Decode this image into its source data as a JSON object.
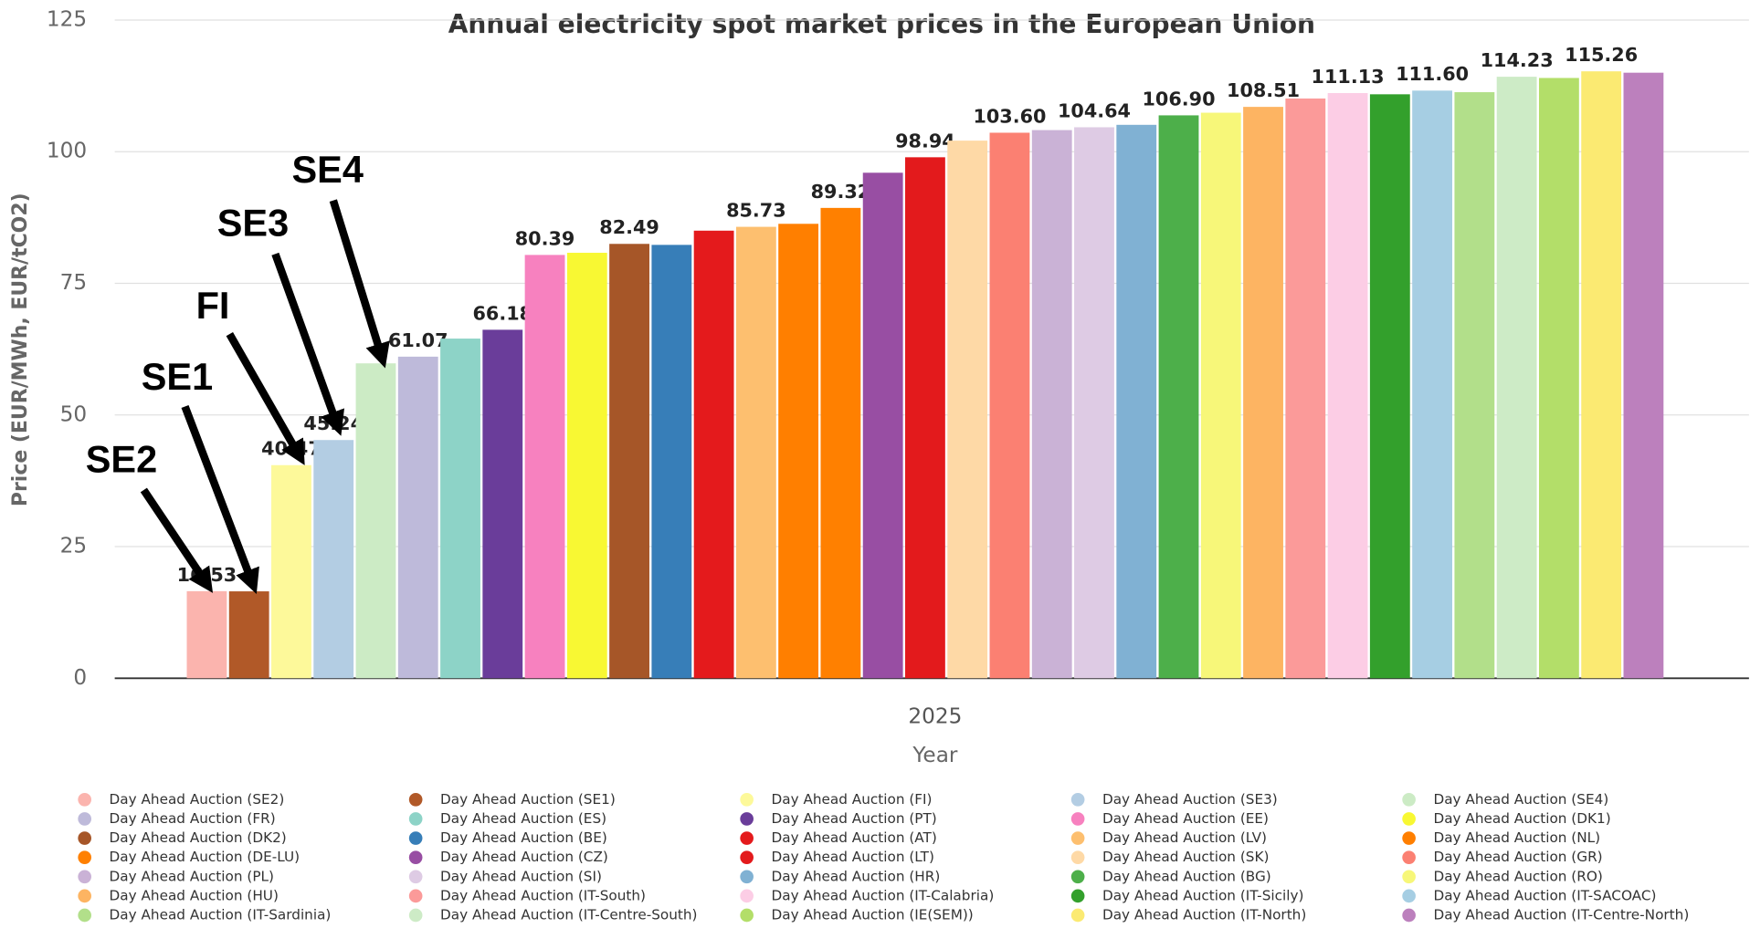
{
  "chart_data": {
    "type": "bar",
    "title": "Annual electricity spot market prices in the European Union",
    "x_label": "Year",
    "y_label": "Price (EUR/MWh, EUR/tCO2)",
    "categories": [
      "2025"
    ],
    "ylim": [
      0,
      125
    ],
    "yticks": [
      0,
      25,
      50,
      75,
      100,
      125
    ],
    "grid": true,
    "series": [
      {
        "name": "Day Ahead Auction (SE2)",
        "color": "#fbb4ae",
        "values": [
          16.53
        ],
        "value_labels": [
          "16.53"
        ]
      },
      {
        "name": "Day Ahead Auction (SE1)",
        "color": "#b15928",
        "values": [
          16.5
        ]
      },
      {
        "name": "Day Ahead Auction (FI)",
        "color": "#fdf99a",
        "values": [
          40.47
        ]
      },
      {
        "name": "Day Ahead Auction (SE3)",
        "color": "#b3cde3",
        "values": [
          45.24
        ]
      },
      {
        "name": "Day Ahead Auction (SE4)",
        "color": "#ccebc5",
        "values": [
          59.8
        ]
      },
      {
        "name": "Day Ahead Auction (FR)",
        "color": "#bebada",
        "values": [
          61.07
        ]
      },
      {
        "name": "Day Ahead Auction (ES)",
        "color": "#8dd3c7",
        "values": [
          64.5
        ]
      },
      {
        "name": "Day Ahead Auction (PT)",
        "color": "#6a3d9a",
        "values": [
          66.18
        ]
      },
      {
        "name": "Day Ahead Auction (EE)",
        "color": "#f781bf",
        "values": [
          80.39
        ]
      },
      {
        "name": "Day Ahead Auction (DK1)",
        "color": "#f8f833",
        "values": [
          80.8
        ]
      },
      {
        "name": "Day Ahead Auction (DK2)",
        "color": "#a65628",
        "values": [
          82.49
        ]
      },
      {
        "name": "Day Ahead Auction (BE)",
        "color": "#377eb8",
        "values": [
          82.3
        ]
      },
      {
        "name": "Day Ahead Auction (AT)",
        "color": "#e41a1c",
        "values": [
          85.0
        ]
      },
      {
        "name": "Day Ahead Auction (LV)",
        "color": "#fdbf6f",
        "values": [
          85.73
        ]
      },
      {
        "name": "Day Ahead Auction (NL)",
        "color": "#ff7f00",
        "values": [
          86.3
        ]
      },
      {
        "name": "Day Ahead Auction (DE-LU)",
        "color": "#ff8000",
        "values": [
          89.32
        ]
      },
      {
        "name": "Day Ahead Auction (CZ)",
        "color": "#984ea3",
        "values": [
          96.0
        ]
      },
      {
        "name": "Day Ahead Auction (LT)",
        "color": "#e31a1c",
        "values": [
          98.94
        ]
      },
      {
        "name": "Day Ahead Auction (SK)",
        "color": "#fed9a6",
        "values": [
          102.1
        ]
      },
      {
        "name": "Day Ahead Auction (GR)",
        "color": "#fb8072",
        "values": [
          103.6
        ],
        "value_labels": [
          "103.60"
        ]
      },
      {
        "name": "Day Ahead Auction (PL)",
        "color": "#cab2d6",
        "values": [
          104.1
        ]
      },
      {
        "name": "Day Ahead Auction (SI)",
        "color": "#decbe4",
        "values": [
          104.64
        ]
      },
      {
        "name": "Day Ahead Auction (HR)",
        "color": "#80b1d3",
        "values": [
          105.1
        ]
      },
      {
        "name": "Day Ahead Auction (BG)",
        "color": "#4daf4a",
        "values": [
          106.9
        ],
        "value_labels": [
          "106.90"
        ]
      },
      {
        "name": "Day Ahead Auction (RO)",
        "color": "#f7f779",
        "values": [
          107.4
        ]
      },
      {
        "name": "Day Ahead Auction (HU)",
        "color": "#fdb462",
        "values": [
          108.51
        ]
      },
      {
        "name": "Day Ahead Auction (IT-South)",
        "color": "#fb9a99",
        "values": [
          110.1
        ]
      },
      {
        "name": "Day Ahead Auction (IT-Calabria)",
        "color": "#fccde5",
        "values": [
          111.13
        ]
      },
      {
        "name": "Day Ahead Auction (IT-Sicily)",
        "color": "#33a02c",
        "values": [
          110.9
        ]
      },
      {
        "name": "Day Ahead Auction (IT-SACOAC)",
        "color": "#a6cee3",
        "values": [
          111.6
        ],
        "value_labels": [
          "111.60"
        ]
      },
      {
        "name": "Day Ahead Auction (IT-Sardinia)",
        "color": "#b2df8a",
        "values": [
          111.3
        ]
      },
      {
        "name": "Day Ahead Auction (IT-Centre-South)",
        "color": "#cdebc6",
        "values": [
          114.23
        ]
      },
      {
        "name": "Day Ahead Auction (IE(SEM))",
        "color": "#b3de69",
        "values": [
          114.0
        ]
      },
      {
        "name": "Day Ahead Auction (IT-North)",
        "color": "#fbea72",
        "values": [
          115.26
        ]
      },
      {
        "name": "Day Ahead Auction (IT-Centre-North)",
        "color": "#bc80bd",
        "values": [
          115.0
        ]
      }
    ],
    "annotations": [
      "SE2",
      "SE1",
      "FI",
      "SE3",
      "SE4"
    ]
  }
}
